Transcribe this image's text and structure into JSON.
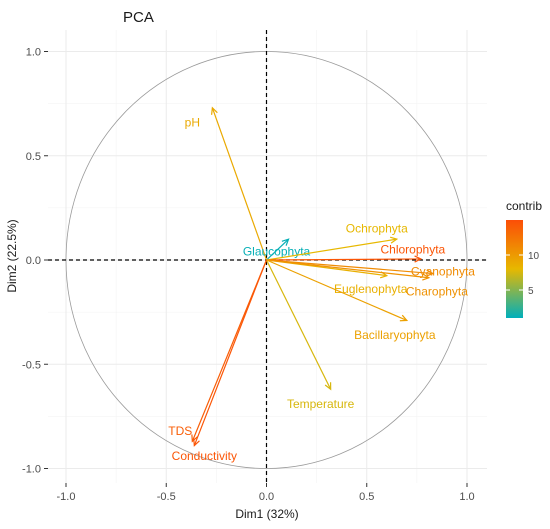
{
  "chart_data": {
    "type": "scatter",
    "title": "PCA",
    "xlabel": "Dim1 (32%)",
    "ylabel": "Dim2 (22.5%)",
    "xlim": [
      -1.0,
      1.0
    ],
    "ylim": [
      -1.0,
      1.0
    ],
    "x_ticks": [
      "-1.0",
      "-0.5",
      "0.0",
      "0.5",
      "1.0"
    ],
    "y_ticks": [
      "1.0",
      "0.5",
      "0.0",
      "-0.5",
      "-1.0"
    ],
    "grid": true,
    "unit_circle": true,
    "legend": {
      "title": "contrib",
      "position": "right",
      "ticks": [
        "10",
        "5"
      ],
      "range": [
        1,
        15
      ],
      "colors": [
        "#00AFBB",
        "#E7B800",
        "#FC4E07"
      ]
    },
    "vectors": [
      {
        "label": "pH",
        "x": -0.27,
        "y": 0.73,
        "contrib": 9.0
      },
      {
        "label": "Glaucophyta",
        "x": 0.11,
        "y": 0.1,
        "contrib": 1.2
      },
      {
        "label": "Ochrophyta",
        "x": 0.65,
        "y": 0.1,
        "contrib": 8.0
      },
      {
        "label": "Chlorophyta",
        "x": 0.77,
        "y": 0.005,
        "contrib": 14.5
      },
      {
        "label": "Cyanophyta",
        "x": 0.83,
        "y": -0.065,
        "contrib": 11.0
      },
      {
        "label": "Euglenophyta",
        "x": 0.6,
        "y": -0.075,
        "contrib": 8.5
      },
      {
        "label": "Charophyta",
        "x": 0.81,
        "y": -0.085,
        "contrib": 10.5
      },
      {
        "label": "Bacillaryophyta",
        "x": 0.7,
        "y": -0.29,
        "contrib": 9.5
      },
      {
        "label": "Temperature",
        "x": 0.32,
        "y": -0.62,
        "contrib": 7.5
      },
      {
        "label": "TDS",
        "x": -0.37,
        "y": -0.87,
        "contrib": 14.0
      },
      {
        "label": "Conductivity",
        "x": -0.36,
        "y": -0.89,
        "contrib": 14.5
      }
    ]
  }
}
